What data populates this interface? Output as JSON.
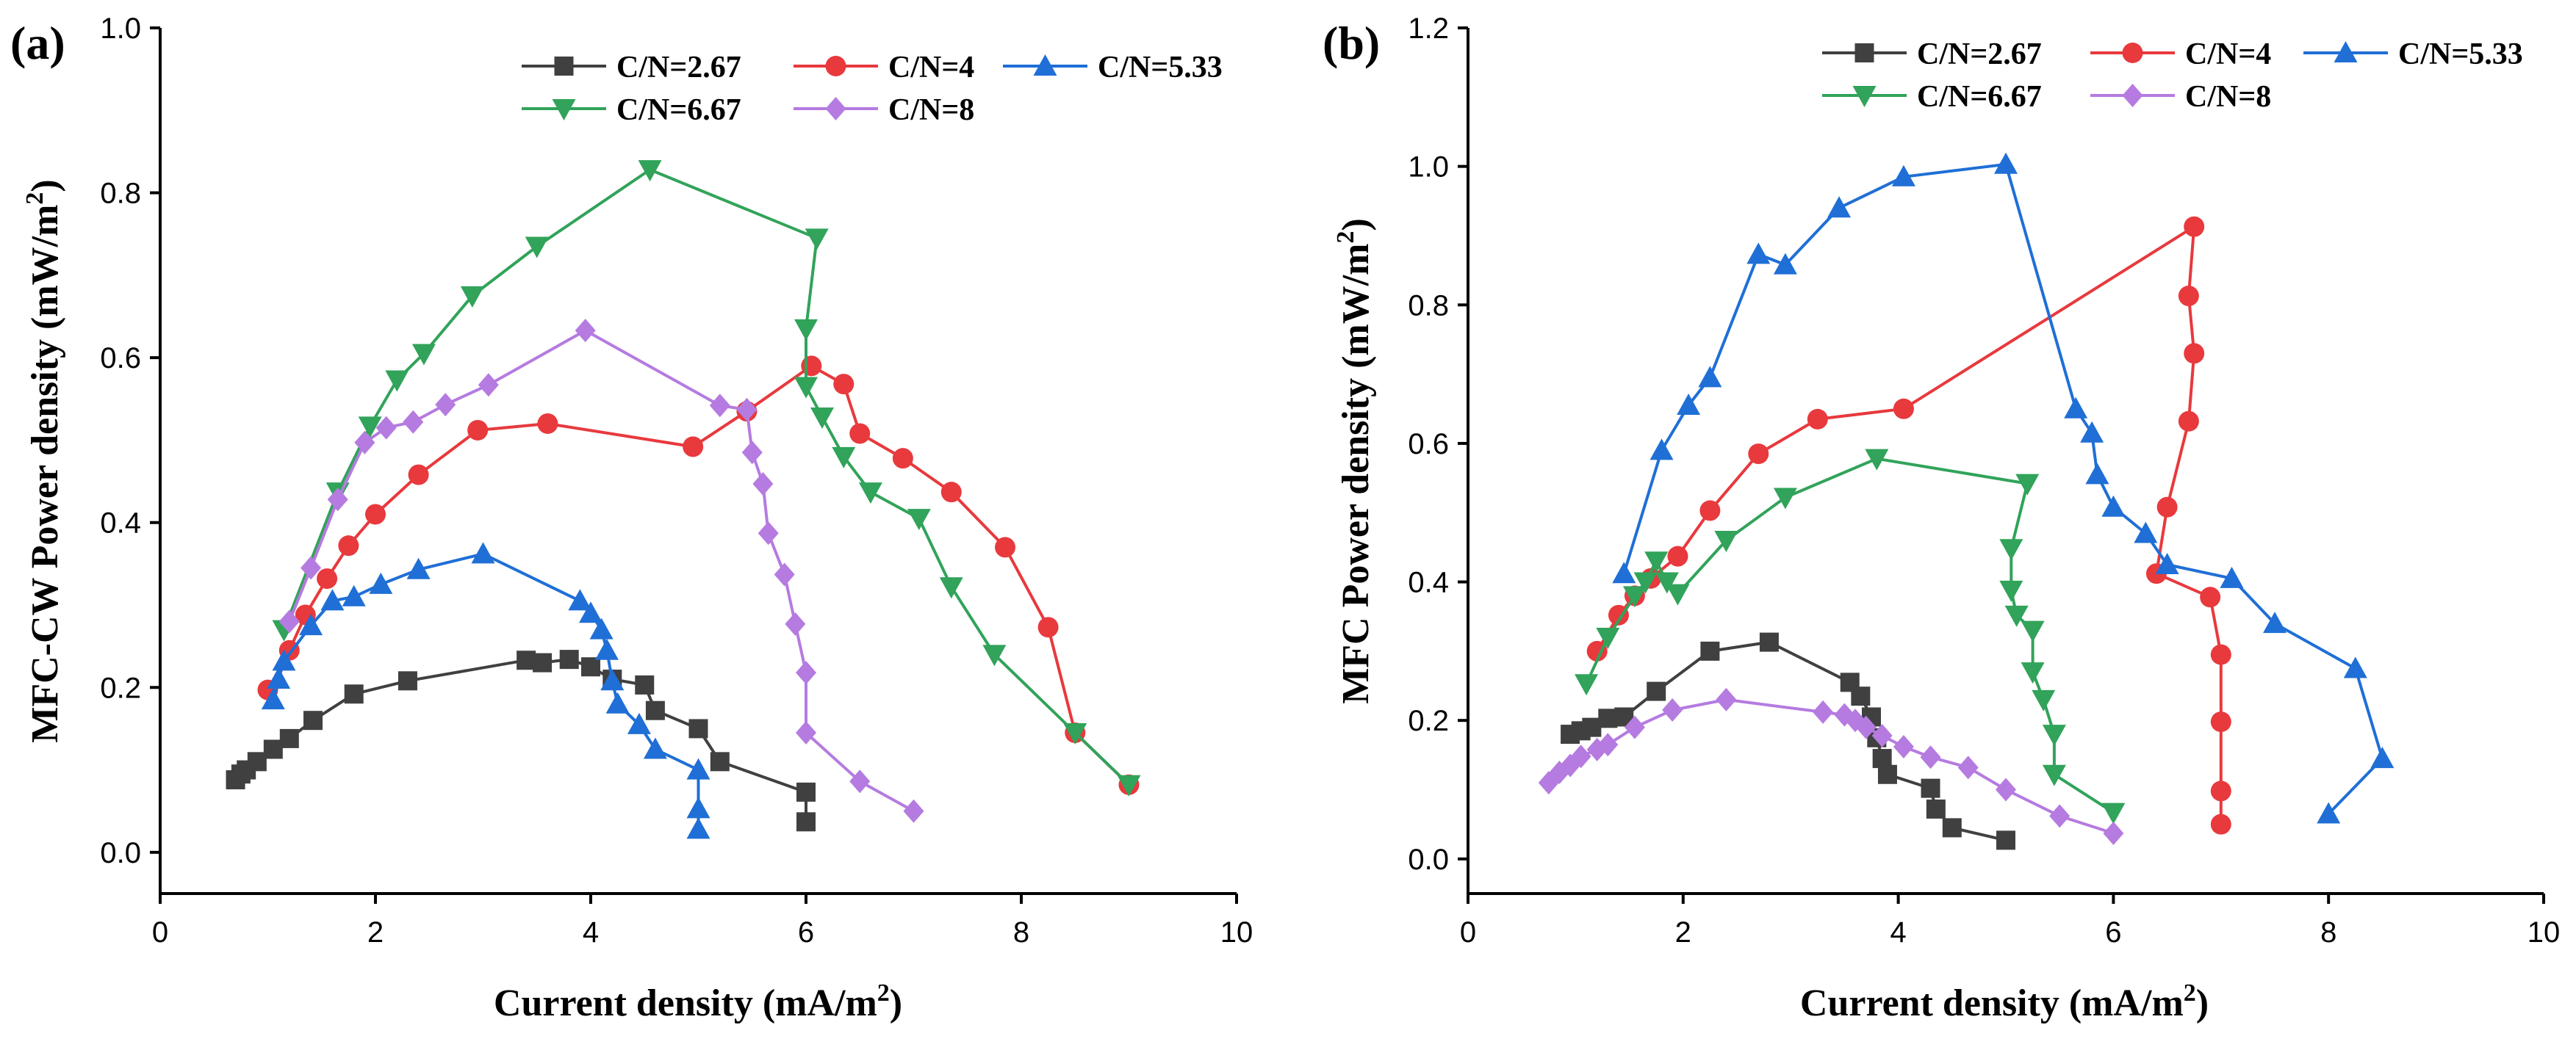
{
  "chart_data": [
    {
      "type": "line",
      "panel_label": "(a)",
      "title": "",
      "xlabel": "Current density (mA/m",
      "xlabel_sup": "2",
      "xlabel_end": ")",
      "ylabel": "MFC-CW Power density (mW/m",
      "ylabel_sup": "2",
      "ylabel_end": ")",
      "xlim": [
        0,
        10
      ],
      "ylim": [
        -0.05,
        1.0
      ],
      "xticks": [
        "0",
        "2",
        "4",
        "6",
        "8",
        "10"
      ],
      "yticks": [
        "0.0",
        "0.2",
        "0.4",
        "0.6",
        "0.8",
        "1.0"
      ],
      "legend": "top-right",
      "series": [
        {
          "name": "C/N=2.67",
          "color": "#404040",
          "marker": "square",
          "x": [
            0.7,
            0.75,
            0.8,
            0.9,
            1.05,
            1.2,
            1.42,
            1.8,
            2.3,
            3.4,
            3.55,
            3.8,
            4.0,
            4.2,
            4.5,
            4.6,
            5.0,
            5.2,
            6.0,
            6.0
          ],
          "y": [
            0.088,
            0.095,
            0.1,
            0.11,
            0.125,
            0.138,
            0.16,
            0.192,
            0.208,
            0.233,
            0.23,
            0.234,
            0.225,
            0.21,
            0.203,
            0.172,
            0.15,
            0.11,
            0.073,
            0.037
          ]
        },
        {
          "name": "C/N=4",
          "color": "#E8393D",
          "marker": "circle",
          "x": [
            1.0,
            1.2,
            1.35,
            1.55,
            1.75,
            2.0,
            2.4,
            2.95,
            3.6,
            4.95,
            5.45,
            6.05,
            6.35,
            6.5,
            6.9,
            7.35,
            7.85,
            8.25,
            8.5,
            9.0
          ],
          "y": [
            0.197,
            0.245,
            0.288,
            0.332,
            0.372,
            0.41,
            0.458,
            0.512,
            0.52,
            0.492,
            0.535,
            0.59,
            0.568,
            0.508,
            0.478,
            0.437,
            0.37,
            0.273,
            0.145,
            0.082
          ]
        },
        {
          "name": "C/N=5.33",
          "color": "#1F6FD6",
          "marker": "triangle-up",
          "x": [
            1.05,
            1.1,
            1.15,
            1.4,
            1.6,
            1.8,
            2.05,
            2.4,
            3.0,
            3.9,
            4.0,
            4.1,
            4.15,
            4.2,
            4.25,
            4.45,
            4.6,
            5.0,
            5.0,
            5.0
          ],
          "y": [
            0.185,
            0.21,
            0.232,
            0.275,
            0.305,
            0.31,
            0.325,
            0.343,
            0.362,
            0.305,
            0.29,
            0.27,
            0.245,
            0.208,
            0.18,
            0.155,
            0.125,
            0.1,
            0.053,
            0.028
          ]
        },
        {
          "name": "C/N=6.67",
          "color": "#31A35A",
          "marker": "triangle-down",
          "x": [
            1.15,
            1.65,
            1.95,
            2.2,
            2.45,
            2.9,
            3.5,
            4.55,
            6.1,
            6.0,
            6.0,
            6.15,
            6.35,
            6.6,
            7.05,
            7.35,
            7.75,
            8.5,
            9.0
          ],
          "y": [
            0.27,
            0.437,
            0.517,
            0.573,
            0.605,
            0.675,
            0.735,
            0.828,
            0.745,
            0.635,
            0.565,
            0.528,
            0.48,
            0.437,
            0.405,
            0.322,
            0.24,
            0.145,
            0.082
          ]
        },
        {
          "name": "C/N=8",
          "color": "#B57BE0",
          "marker": "diamond",
          "x": [
            1.2,
            1.4,
            1.65,
            1.9,
            2.1,
            2.35,
            2.65,
            3.05,
            3.95,
            5.2,
            5.45,
            5.5,
            5.6,
            5.65,
            5.8,
            5.9,
            6.0,
            6.0,
            6.5,
            7.0
          ],
          "y": [
            0.28,
            0.345,
            0.428,
            0.497,
            0.515,
            0.522,
            0.543,
            0.567,
            0.633,
            0.542,
            0.537,
            0.485,
            0.447,
            0.387,
            0.337,
            0.277,
            0.218,
            0.145,
            0.086,
            0.05
          ]
        }
      ]
    },
    {
      "type": "line",
      "panel_label": "(b)",
      "title": "",
      "xlabel": "Current density (mA/m",
      "xlabel_sup": "2",
      "xlabel_end": ")",
      "ylabel": "MFC Power density (mW/m",
      "ylabel_sup": "2",
      "ylabel_end": ")",
      "xlim": [
        0,
        10
      ],
      "ylim": [
        -0.05,
        1.2
      ],
      "xticks": [
        "0",
        "2",
        "4",
        "6",
        "8",
        "10"
      ],
      "yticks": [
        "0.0",
        "0.2",
        "0.4",
        "0.6",
        "0.8",
        "1.0",
        "1.2"
      ],
      "legend": "top-right",
      "series": [
        {
          "name": "C/N=2.67",
          "color": "#404040",
          "marker": "square",
          "x": [
            0.95,
            1.05,
            1.15,
            1.3,
            1.45,
            1.75,
            2.25,
            2.8,
            3.55,
            3.65,
            3.75,
            3.8,
            3.85,
            3.9,
            4.3,
            4.35,
            4.5,
            5.0
          ],
          "y": [
            0.18,
            0.185,
            0.19,
            0.203,
            0.205,
            0.242,
            0.3,
            0.313,
            0.255,
            0.235,
            0.205,
            0.175,
            0.145,
            0.122,
            0.102,
            0.072,
            0.045,
            0.027
          ]
        },
        {
          "name": "C/N=4",
          "color": "#E8393D",
          "marker": "circle",
          "x": [
            1.2,
            1.4,
            1.55,
            1.7,
            1.95,
            2.25,
            2.7,
            3.25,
            4.05,
            6.75,
            6.7,
            6.75,
            6.7,
            6.5,
            6.4,
            6.9,
            7.0,
            7.0,
            7.0,
            7.0
          ],
          "y": [
            0.3,
            0.352,
            0.38,
            0.405,
            0.437,
            0.503,
            0.585,
            0.635,
            0.65,
            0.913,
            0.813,
            0.73,
            0.632,
            0.508,
            0.412,
            0.378,
            0.295,
            0.198,
            0.098,
            0.05
          ]
        },
        {
          "name": "C/N=5.33",
          "color": "#1F6FD6",
          "marker": "triangle-up",
          "x": [
            1.45,
            1.8,
            2.05,
            2.25,
            2.7,
            2.95,
            3.45,
            4.05,
            5.0,
            5.65,
            5.8,
            5.85,
            6.0,
            6.3,
            6.5,
            7.1,
            7.5,
            8.25,
            8.5,
            8.0
          ],
          "y": [
            0.412,
            0.59,
            0.655,
            0.695,
            0.873,
            0.858,
            0.94,
            0.985,
            1.003,
            0.65,
            0.615,
            0.555,
            0.508,
            0.47,
            0.425,
            0.405,
            0.34,
            0.275,
            0.145,
            0.065
          ]
        },
        {
          "name": "C/N=6.67",
          "color": "#31A35A",
          "marker": "triangle-down",
          "x": [
            1.1,
            1.3,
            1.55,
            1.65,
            1.75,
            1.85,
            1.95,
            2.4,
            2.95,
            3.8,
            5.2,
            5.05,
            5.05,
            5.1,
            5.25,
            5.25,
            5.35,
            5.45,
            5.45,
            6.0
          ],
          "y": [
            0.253,
            0.32,
            0.38,
            0.4,
            0.43,
            0.4,
            0.383,
            0.46,
            0.522,
            0.578,
            0.542,
            0.448,
            0.388,
            0.352,
            0.33,
            0.27,
            0.23,
            0.18,
            0.122,
            0.067
          ]
        },
        {
          "name": "C/N=8",
          "color": "#B57BE0",
          "marker": "diamond",
          "x": [
            0.75,
            0.85,
            0.95,
            1.05,
            1.2,
            1.3,
            1.55,
            1.9,
            2.4,
            3.3,
            3.5,
            3.6,
            3.7,
            3.85,
            4.05,
            4.3,
            4.65,
            5.0,
            5.5,
            6.0
          ],
          "y": [
            0.11,
            0.125,
            0.135,
            0.148,
            0.158,
            0.165,
            0.19,
            0.215,
            0.23,
            0.212,
            0.208,
            0.2,
            0.19,
            0.178,
            0.162,
            0.147,
            0.132,
            0.1,
            0.062,
            0.037
          ]
        }
      ]
    }
  ]
}
